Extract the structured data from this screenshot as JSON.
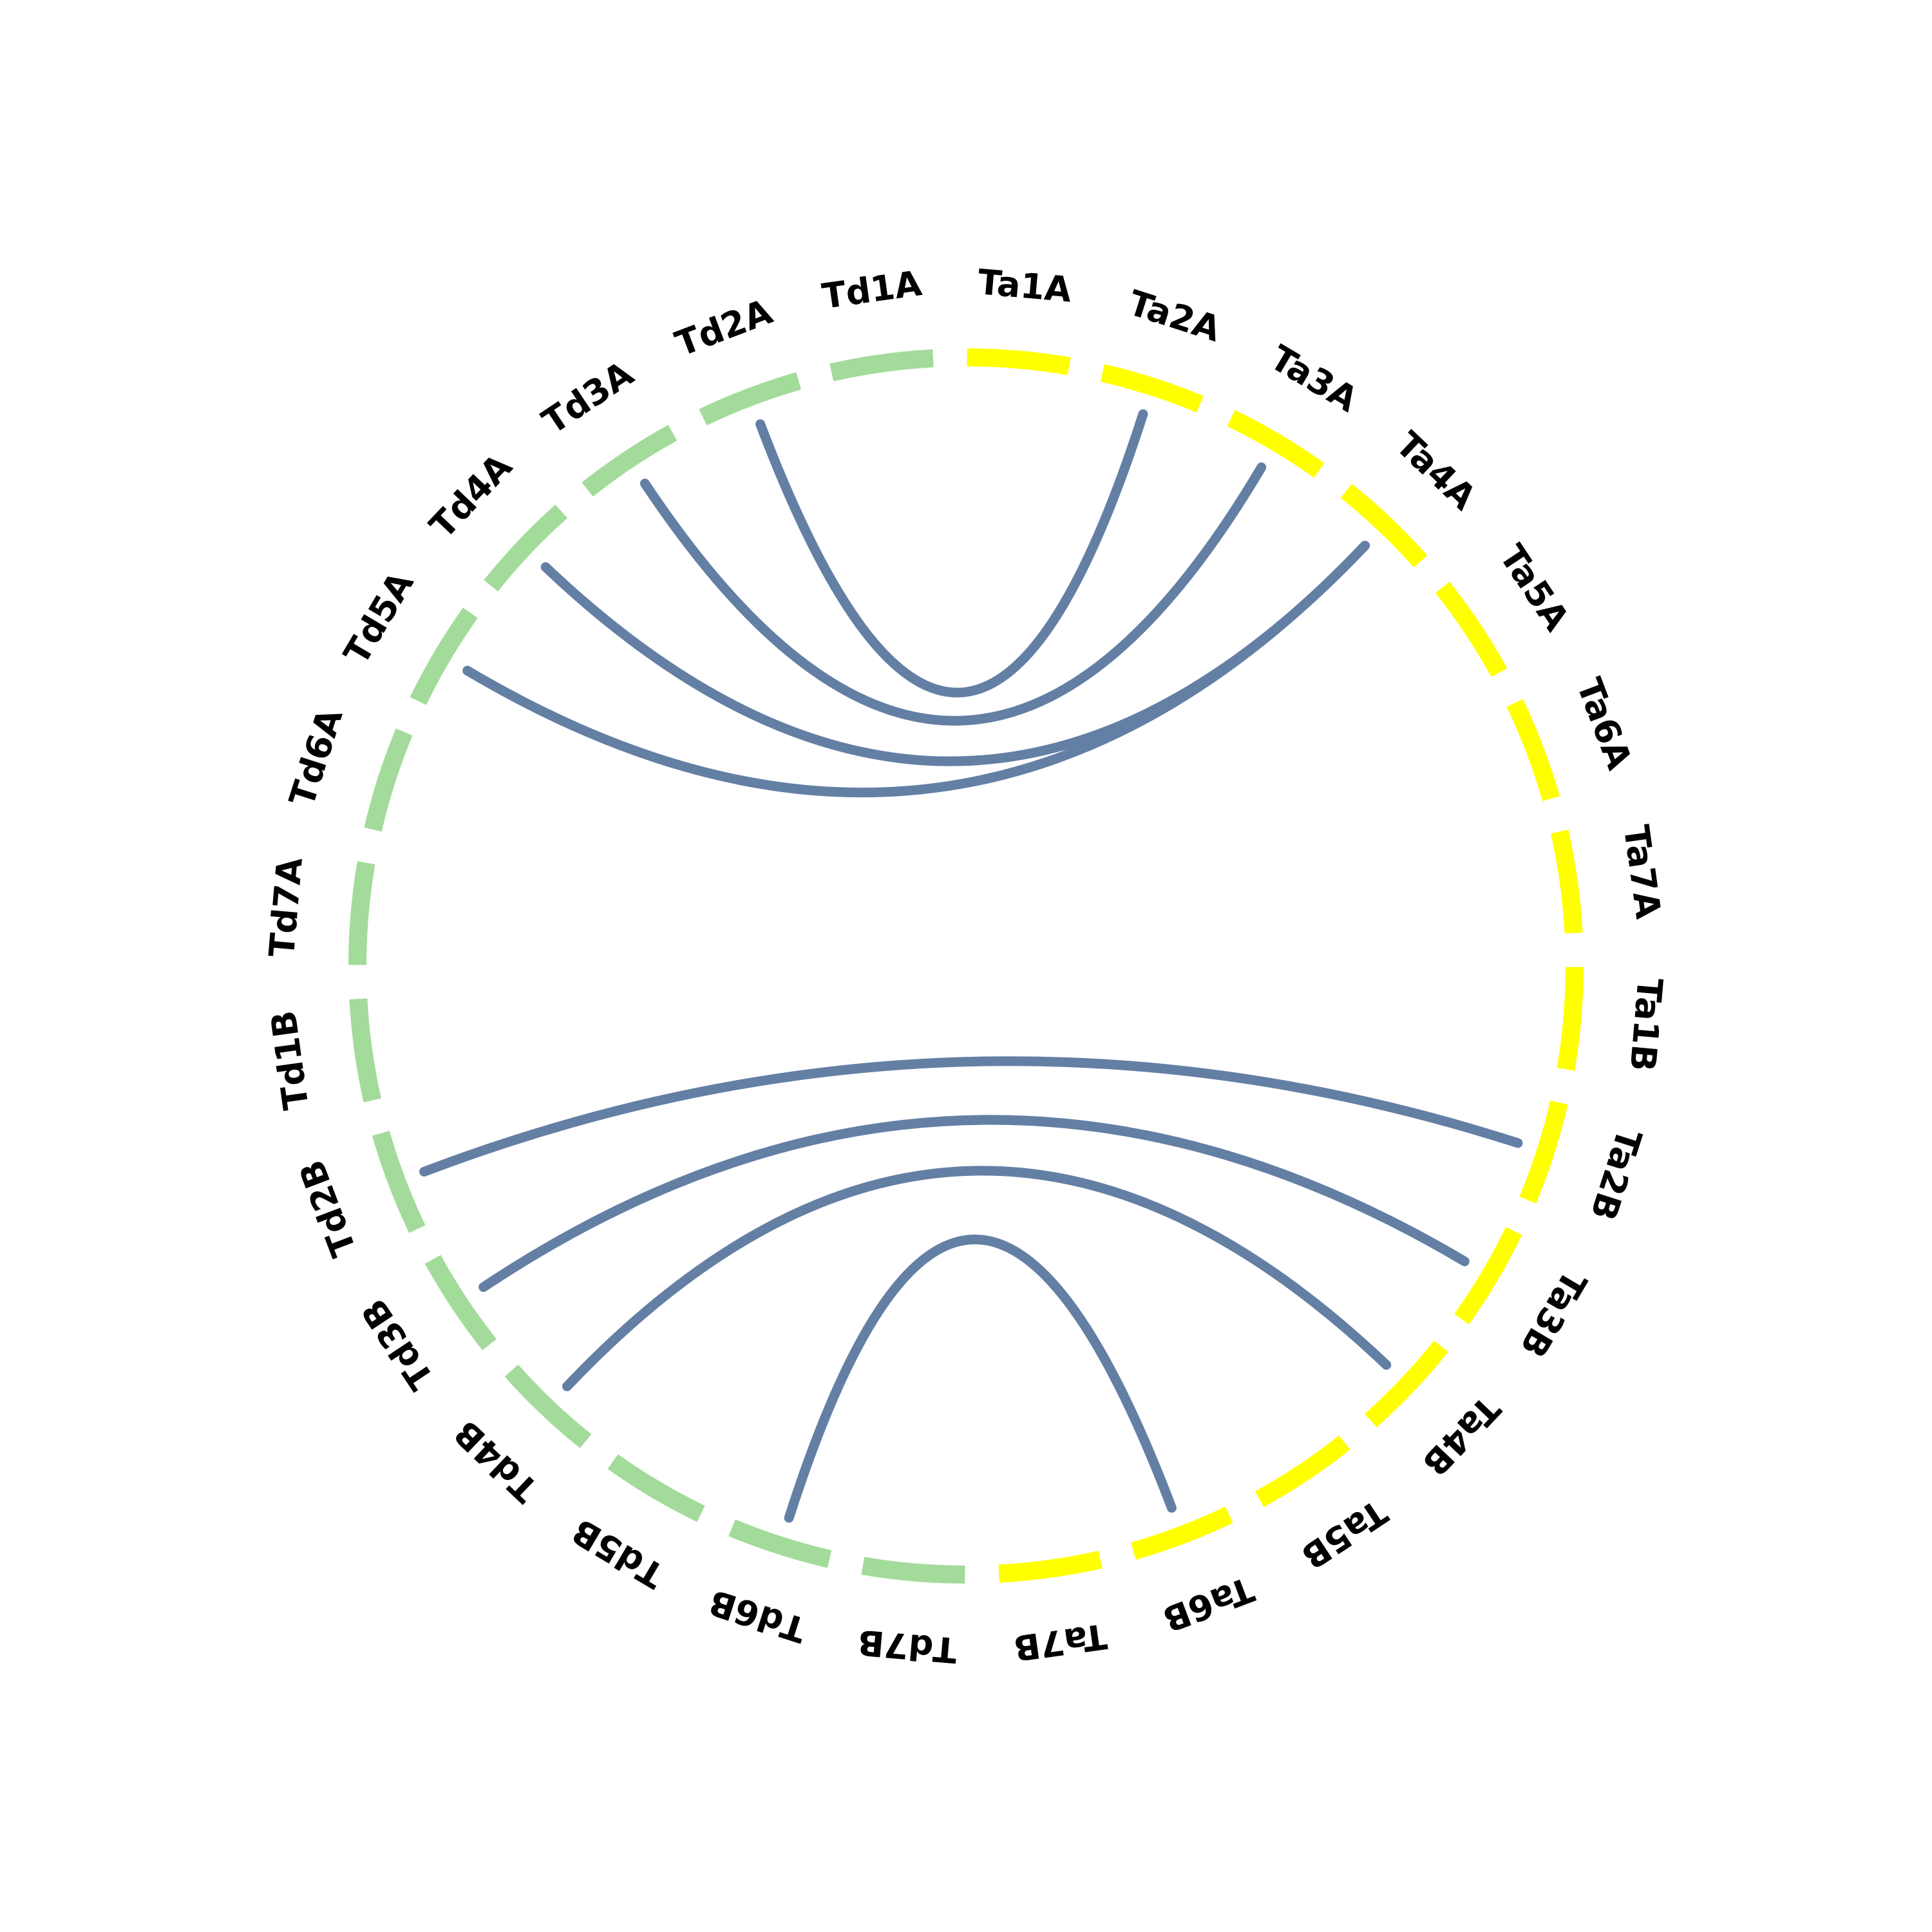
{
  "colors": {
    "Td": "#a3db9a",
    "Ta": "#ffff00",
    "link": "#647fa4"
  },
  "chromosomes": [
    {
      "id": "Ta1A",
      "label": "Ta1A",
      "group": "Ta"
    },
    {
      "id": "Ta2A",
      "label": "Ta2A",
      "group": "Ta"
    },
    {
      "id": "Ta3A",
      "label": "Ta3A",
      "group": "Ta"
    },
    {
      "id": "Ta4A",
      "label": "Ta4A",
      "group": "Ta"
    },
    {
      "id": "Ta5A",
      "label": "Ta5A",
      "group": "Ta"
    },
    {
      "id": "Ta6A",
      "label": "Ta6A",
      "group": "Ta"
    },
    {
      "id": "Ta7A",
      "label": "Ta7A",
      "group": "Ta"
    },
    {
      "id": "Ta1B",
      "label": "Ta1B",
      "group": "Ta"
    },
    {
      "id": "Ta2B",
      "label": "Ta2B",
      "group": "Ta"
    },
    {
      "id": "Ta3B",
      "label": "Ta3B",
      "group": "Ta"
    },
    {
      "id": "Ta4B",
      "label": "Ta4B",
      "group": "Ta"
    },
    {
      "id": "Ta5B",
      "label": "Ta5B",
      "group": "Ta"
    },
    {
      "id": "Ta6B",
      "label": "Ta6B",
      "group": "Ta"
    },
    {
      "id": "Ta7B",
      "label": "Ta7B",
      "group": "Ta"
    },
    {
      "id": "Td7B",
      "label": "Td7B",
      "group": "Td"
    },
    {
      "id": "Td6B",
      "label": "Td6B",
      "group": "Td"
    },
    {
      "id": "Td5B",
      "label": "Td5B",
      "group": "Td"
    },
    {
      "id": "Td4B",
      "label": "Td4B",
      "group": "Td"
    },
    {
      "id": "Td3B",
      "label": "Td3B",
      "group": "Td"
    },
    {
      "id": "Td2B",
      "label": "Td2B",
      "group": "Td"
    },
    {
      "id": "Td1B",
      "label": "Td1B",
      "group": "Td"
    },
    {
      "id": "Td7A",
      "label": "Td7A",
      "group": "Td"
    },
    {
      "id": "Td6A",
      "label": "Td6A",
      "group": "Td"
    },
    {
      "id": "Td5A",
      "label": "Td5A",
      "group": "Td"
    },
    {
      "id": "Td4A",
      "label": "Td4A",
      "group": "Td"
    },
    {
      "id": "Td3A",
      "label": "Td3A",
      "group": "Td"
    },
    {
      "id": "Td2A",
      "label": "Td2A",
      "group": "Td"
    },
    {
      "id": "Td1A",
      "label": "Td1A",
      "group": "Td"
    }
  ],
  "links": [
    {
      "from": "Td2A",
      "to": "Ta2A"
    },
    {
      "from": "Td3A",
      "to": "Ta3A"
    },
    {
      "from": "Td4A",
      "to": "Ta4A"
    },
    {
      "from": "Td5A",
      "to": "Ta4A"
    },
    {
      "from": "Td2B",
      "to": "Ta2B"
    },
    {
      "from": "Td3B",
      "to": "Ta3B"
    },
    {
      "from": "Td4B",
      "to": "Ta4B"
    },
    {
      "from": "Td6B",
      "to": "Ta6B"
    }
  ]
}
